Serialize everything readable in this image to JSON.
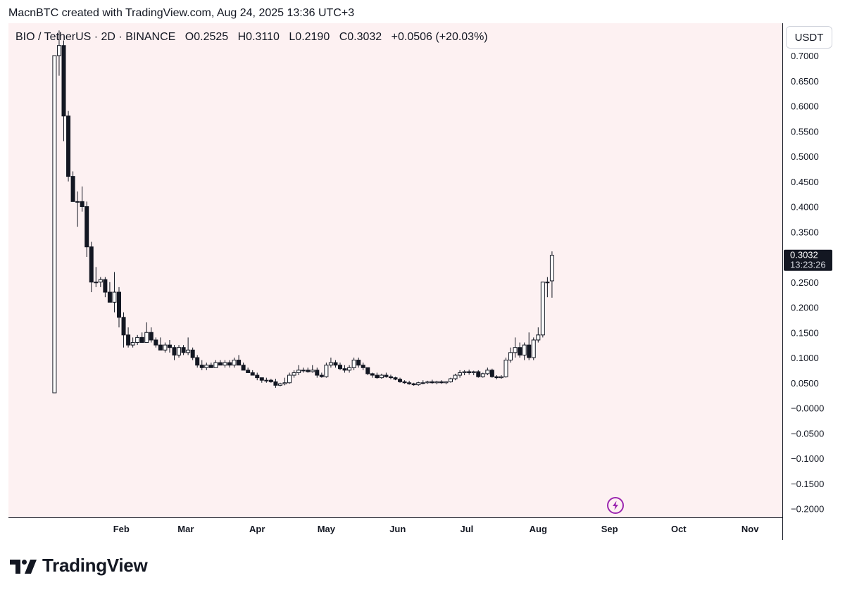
{
  "attribution": "MacnBTC created with TradingView.com, Aug 24, 2025 13:36 UTC+3",
  "legend": {
    "symbol": "BIO / TetherUS · 2D · BINANCE",
    "open": "O0.2525",
    "high": "H0.3110",
    "low": "L0.2190",
    "close": "C0.3032",
    "change": "+0.0506 (+20.03%)"
  },
  "currency_button": "USDT",
  "last_price": {
    "value": "0.3032",
    "countdown": "13:23:26"
  },
  "brand": "TradingView",
  "colors": {
    "chart_background": "#fdf1f2",
    "candle_up_fill": "#ffffff",
    "candle_down_fill": "#131722",
    "candle_outline": "#131722",
    "price_label_bg": "#131722",
    "flash_icon": "#9c27b0",
    "axis_line": "#131722"
  },
  "chart_data": {
    "type": "candlestick",
    "title": "BIO / TetherUS · 2D · BINANCE",
    "y_axis_unit": "USDT",
    "ylim": [
      -0.22,
      0.72
    ],
    "y_ticks": [
      "0.7000",
      "0.6500",
      "0.6000",
      "0.5500",
      "0.5000",
      "0.4500",
      "0.4000",
      "0.3500",
      "0.3000",
      "0.2500",
      "0.2000",
      "0.1500",
      "0.1000",
      "0.0500",
      "−0.0000",
      "−0.0500",
      "−0.1000",
      "−0.1500",
      "−0.2000"
    ],
    "y_tick_values": [
      0.7,
      0.65,
      0.6,
      0.55,
      0.5,
      0.45,
      0.4,
      0.35,
      0.3,
      0.25,
      0.2,
      0.15,
      0.1,
      0.05,
      0.0,
      -0.05,
      -0.1,
      -0.15,
      -0.2
    ],
    "x_tick_labels": [
      "Feb",
      "Mar",
      "Apr",
      "May",
      "Jun",
      "Jul",
      "Aug",
      "Sep",
      "Oct",
      "Nov"
    ],
    "x_tick_dates": [
      "2025-02-01",
      "2025-03-01",
      "2025-04-01",
      "2025-05-01",
      "2025-06-01",
      "2025-07-01",
      "2025-08-01",
      "2025-09-01",
      "2025-10-01",
      "2025-11-01"
    ],
    "x_range": [
      "2024-12-14",
      "2025-11-15"
    ],
    "grid": false,
    "candles": [
      {
        "d": "2025-01-03",
        "o": 0.03,
        "h": 0.7,
        "l": 0.03,
        "c": 0.7
      },
      {
        "d": "2025-01-05",
        "o": 0.7,
        "h": 0.75,
        "l": 0.66,
        "c": 0.72
      },
      {
        "d": "2025-01-07",
        "o": 0.72,
        "h": 0.73,
        "l": 0.53,
        "c": 0.58
      },
      {
        "d": "2025-01-09",
        "o": 0.58,
        "h": 0.59,
        "l": 0.45,
        "c": 0.46
      },
      {
        "d": "2025-01-11",
        "o": 0.46,
        "h": 0.47,
        "l": 0.41,
        "c": 0.41
      },
      {
        "d": "2025-01-13",
        "o": 0.41,
        "h": 0.43,
        "l": 0.36,
        "c": 0.41
      },
      {
        "d": "2025-01-15",
        "o": 0.41,
        "h": 0.44,
        "l": 0.39,
        "c": 0.4
      },
      {
        "d": "2025-01-17",
        "o": 0.4,
        "h": 0.41,
        "l": 0.3,
        "c": 0.32
      },
      {
        "d": "2025-01-19",
        "o": 0.32,
        "h": 0.33,
        "l": 0.23,
        "c": 0.25
      },
      {
        "d": "2025-01-21",
        "o": 0.25,
        "h": 0.28,
        "l": 0.24,
        "c": 0.25
      },
      {
        "d": "2025-01-23",
        "o": 0.25,
        "h": 0.26,
        "l": 0.24,
        "c": 0.255
      },
      {
        "d": "2025-01-25",
        "o": 0.255,
        "h": 0.26,
        "l": 0.22,
        "c": 0.23
      },
      {
        "d": "2025-01-27",
        "o": 0.23,
        "h": 0.25,
        "l": 0.21,
        "c": 0.21
      },
      {
        "d": "2025-01-29",
        "o": 0.21,
        "h": 0.27,
        "l": 0.19,
        "c": 0.23
      },
      {
        "d": "2025-01-31",
        "o": 0.23,
        "h": 0.24,
        "l": 0.16,
        "c": 0.18
      },
      {
        "d": "2025-02-02",
        "o": 0.18,
        "h": 0.19,
        "l": 0.12,
        "c": 0.145
      },
      {
        "d": "2025-02-04",
        "o": 0.145,
        "h": 0.16,
        "l": 0.12,
        "c": 0.125
      },
      {
        "d": "2025-02-06",
        "o": 0.125,
        "h": 0.14,
        "l": 0.12,
        "c": 0.13
      },
      {
        "d": "2025-02-08",
        "o": 0.13,
        "h": 0.145,
        "l": 0.125,
        "c": 0.14
      },
      {
        "d": "2025-02-10",
        "o": 0.14,
        "h": 0.15,
        "l": 0.13,
        "c": 0.13
      },
      {
        "d": "2025-02-12",
        "o": 0.13,
        "h": 0.17,
        "l": 0.13,
        "c": 0.15
      },
      {
        "d": "2025-02-14",
        "o": 0.15,
        "h": 0.16,
        "l": 0.13,
        "c": 0.135
      },
      {
        "d": "2025-02-16",
        "o": 0.135,
        "h": 0.14,
        "l": 0.12,
        "c": 0.125
      },
      {
        "d": "2025-02-18",
        "o": 0.125,
        "h": 0.14,
        "l": 0.115,
        "c": 0.115
      },
      {
        "d": "2025-02-20",
        "o": 0.115,
        "h": 0.13,
        "l": 0.11,
        "c": 0.125
      },
      {
        "d": "2025-02-22",
        "o": 0.125,
        "h": 0.135,
        "l": 0.11,
        "c": 0.12
      },
      {
        "d": "2025-02-24",
        "o": 0.12,
        "h": 0.125,
        "l": 0.095,
        "c": 0.105
      },
      {
        "d": "2025-02-26",
        "o": 0.105,
        "h": 0.125,
        "l": 0.1,
        "c": 0.12
      },
      {
        "d": "2025-02-28",
        "o": 0.12,
        "h": 0.125,
        "l": 0.105,
        "c": 0.11
      },
      {
        "d": "2025-03-02",
        "o": 0.11,
        "h": 0.14,
        "l": 0.105,
        "c": 0.115
      },
      {
        "d": "2025-03-04",
        "o": 0.115,
        "h": 0.12,
        "l": 0.095,
        "c": 0.1
      },
      {
        "d": "2025-03-06",
        "o": 0.1,
        "h": 0.105,
        "l": 0.08,
        "c": 0.085
      },
      {
        "d": "2025-03-08",
        "o": 0.085,
        "h": 0.095,
        "l": 0.075,
        "c": 0.08
      },
      {
        "d": "2025-03-10",
        "o": 0.08,
        "h": 0.09,
        "l": 0.075,
        "c": 0.085
      },
      {
        "d": "2025-03-12",
        "o": 0.085,
        "h": 0.09,
        "l": 0.08,
        "c": 0.08
      },
      {
        "d": "2025-03-14",
        "o": 0.08,
        "h": 0.095,
        "l": 0.08,
        "c": 0.09
      },
      {
        "d": "2025-03-16",
        "o": 0.09,
        "h": 0.095,
        "l": 0.085,
        "c": 0.085
      },
      {
        "d": "2025-03-18",
        "o": 0.085,
        "h": 0.095,
        "l": 0.08,
        "c": 0.09
      },
      {
        "d": "2025-03-20",
        "o": 0.09,
        "h": 0.095,
        "l": 0.08,
        "c": 0.085
      },
      {
        "d": "2025-03-22",
        "o": 0.085,
        "h": 0.1,
        "l": 0.08,
        "c": 0.095
      },
      {
        "d": "2025-03-24",
        "o": 0.095,
        "h": 0.105,
        "l": 0.085,
        "c": 0.085
      },
      {
        "d": "2025-03-26",
        "o": 0.085,
        "h": 0.09,
        "l": 0.075,
        "c": 0.075
      },
      {
        "d": "2025-03-28",
        "o": 0.075,
        "h": 0.08,
        "l": 0.07,
        "c": 0.07
      },
      {
        "d": "2025-03-30",
        "o": 0.07,
        "h": 0.075,
        "l": 0.065,
        "c": 0.065
      },
      {
        "d": "2025-04-01",
        "o": 0.065,
        "h": 0.07,
        "l": 0.055,
        "c": 0.06
      },
      {
        "d": "2025-04-03",
        "o": 0.06,
        "h": 0.06,
        "l": 0.05,
        "c": 0.055
      },
      {
        "d": "2025-04-05",
        "o": 0.055,
        "h": 0.06,
        "l": 0.05,
        "c": 0.055
      },
      {
        "d": "2025-04-07",
        "o": 0.055,
        "h": 0.058,
        "l": 0.05,
        "c": 0.052
      },
      {
        "d": "2025-04-09",
        "o": 0.052,
        "h": 0.058,
        "l": 0.04,
        "c": 0.045
      },
      {
        "d": "2025-04-11",
        "o": 0.045,
        "h": 0.05,
        "l": 0.043,
        "c": 0.048
      },
      {
        "d": "2025-04-13",
        "o": 0.048,
        "h": 0.06,
        "l": 0.045,
        "c": 0.05
      },
      {
        "d": "2025-04-15",
        "o": 0.05,
        "h": 0.07,
        "l": 0.048,
        "c": 0.065
      },
      {
        "d": "2025-04-17",
        "o": 0.065,
        "h": 0.075,
        "l": 0.06,
        "c": 0.07
      },
      {
        "d": "2025-04-19",
        "o": 0.07,
        "h": 0.085,
        "l": 0.065,
        "c": 0.075
      },
      {
        "d": "2025-04-21",
        "o": 0.075,
        "h": 0.08,
        "l": 0.07,
        "c": 0.075
      },
      {
        "d": "2025-04-23",
        "o": 0.075,
        "h": 0.08,
        "l": 0.07,
        "c": 0.072
      },
      {
        "d": "2025-04-25",
        "o": 0.072,
        "h": 0.085,
        "l": 0.07,
        "c": 0.075
      },
      {
        "d": "2025-04-27",
        "o": 0.075,
        "h": 0.08,
        "l": 0.06,
        "c": 0.065
      },
      {
        "d": "2025-04-29",
        "o": 0.065,
        "h": 0.07,
        "l": 0.06,
        "c": 0.062
      },
      {
        "d": "2025-05-01",
        "o": 0.062,
        "h": 0.09,
        "l": 0.06,
        "c": 0.085
      },
      {
        "d": "2025-05-03",
        "o": 0.085,
        "h": 0.1,
        "l": 0.08,
        "c": 0.09
      },
      {
        "d": "2025-05-05",
        "o": 0.09,
        "h": 0.095,
        "l": 0.08,
        "c": 0.085
      },
      {
        "d": "2025-05-07",
        "o": 0.085,
        "h": 0.09,
        "l": 0.075,
        "c": 0.078
      },
      {
        "d": "2025-05-09",
        "o": 0.078,
        "h": 0.085,
        "l": 0.07,
        "c": 0.075
      },
      {
        "d": "2025-05-11",
        "o": 0.075,
        "h": 0.085,
        "l": 0.07,
        "c": 0.08
      },
      {
        "d": "2025-05-13",
        "o": 0.08,
        "h": 0.1,
        "l": 0.075,
        "c": 0.095
      },
      {
        "d": "2025-05-15",
        "o": 0.095,
        "h": 0.1,
        "l": 0.08,
        "c": 0.085
      },
      {
        "d": "2025-05-17",
        "o": 0.085,
        "h": 0.09,
        "l": 0.075,
        "c": 0.08
      },
      {
        "d": "2025-05-19",
        "o": 0.08,
        "h": 0.08,
        "l": 0.065,
        "c": 0.068
      },
      {
        "d": "2025-05-21",
        "o": 0.068,
        "h": 0.07,
        "l": 0.06,
        "c": 0.065
      },
      {
        "d": "2025-05-23",
        "o": 0.065,
        "h": 0.07,
        "l": 0.058,
        "c": 0.06
      },
      {
        "d": "2025-05-25",
        "o": 0.06,
        "h": 0.068,
        "l": 0.058,
        "c": 0.065
      },
      {
        "d": "2025-05-27",
        "o": 0.065,
        "h": 0.07,
        "l": 0.06,
        "c": 0.062
      },
      {
        "d": "2025-05-29",
        "o": 0.062,
        "h": 0.066,
        "l": 0.057,
        "c": 0.06
      },
      {
        "d": "2025-05-31",
        "o": 0.06,
        "h": 0.062,
        "l": 0.055,
        "c": 0.057
      },
      {
        "d": "2025-06-02",
        "o": 0.057,
        "h": 0.06,
        "l": 0.05,
        "c": 0.052
      },
      {
        "d": "2025-06-04",
        "o": 0.052,
        "h": 0.055,
        "l": 0.048,
        "c": 0.05
      },
      {
        "d": "2025-06-06",
        "o": 0.05,
        "h": 0.054,
        "l": 0.046,
        "c": 0.048
      },
      {
        "d": "2025-06-08",
        "o": 0.048,
        "h": 0.05,
        "l": 0.044,
        "c": 0.046
      },
      {
        "d": "2025-06-10",
        "o": 0.046,
        "h": 0.052,
        "l": 0.044,
        "c": 0.05
      },
      {
        "d": "2025-06-12",
        "o": 0.05,
        "h": 0.055,
        "l": 0.047,
        "c": 0.05
      },
      {
        "d": "2025-06-14",
        "o": 0.05,
        "h": 0.054,
        "l": 0.048,
        "c": 0.052
      },
      {
        "d": "2025-06-16",
        "o": 0.052,
        "h": 0.056,
        "l": 0.048,
        "c": 0.05
      },
      {
        "d": "2025-06-18",
        "o": 0.05,
        "h": 0.054,
        "l": 0.047,
        "c": 0.052
      },
      {
        "d": "2025-06-20",
        "o": 0.052,
        "h": 0.055,
        "l": 0.048,
        "c": 0.05
      },
      {
        "d": "2025-06-22",
        "o": 0.05,
        "h": 0.053,
        "l": 0.047,
        "c": 0.052
      },
      {
        "d": "2025-06-24",
        "o": 0.052,
        "h": 0.06,
        "l": 0.05,
        "c": 0.058
      },
      {
        "d": "2025-06-26",
        "o": 0.058,
        "h": 0.068,
        "l": 0.055,
        "c": 0.065
      },
      {
        "d": "2025-06-28",
        "o": 0.065,
        "h": 0.075,
        "l": 0.06,
        "c": 0.07
      },
      {
        "d": "2025-06-30",
        "o": 0.07,
        "h": 0.075,
        "l": 0.065,
        "c": 0.072
      },
      {
        "d": "2025-07-02",
        "o": 0.072,
        "h": 0.076,
        "l": 0.066,
        "c": 0.07
      },
      {
        "d": "2025-07-04",
        "o": 0.07,
        "h": 0.074,
        "l": 0.065,
        "c": 0.072
      },
      {
        "d": "2025-07-06",
        "o": 0.072,
        "h": 0.075,
        "l": 0.06,
        "c": 0.062
      },
      {
        "d": "2025-07-08",
        "o": 0.062,
        "h": 0.07,
        "l": 0.06,
        "c": 0.068
      },
      {
        "d": "2025-07-10",
        "o": 0.068,
        "h": 0.08,
        "l": 0.065,
        "c": 0.075
      },
      {
        "d": "2025-07-12",
        "o": 0.075,
        "h": 0.078,
        "l": 0.06,
        "c": 0.062
      },
      {
        "d": "2025-07-14",
        "o": 0.062,
        "h": 0.065,
        "l": 0.057,
        "c": 0.06
      },
      {
        "d": "2025-07-16",
        "o": 0.06,
        "h": 0.065,
        "l": 0.058,
        "c": 0.062
      },
      {
        "d": "2025-07-18",
        "o": 0.062,
        "h": 0.1,
        "l": 0.06,
        "c": 0.095
      },
      {
        "d": "2025-07-20",
        "o": 0.095,
        "h": 0.12,
        "l": 0.09,
        "c": 0.11
      },
      {
        "d": "2025-07-22",
        "o": 0.11,
        "h": 0.14,
        "l": 0.1,
        "c": 0.12
      },
      {
        "d": "2025-07-24",
        "o": 0.12,
        "h": 0.13,
        "l": 0.1,
        "c": 0.105
      },
      {
        "d": "2025-07-26",
        "o": 0.105,
        "h": 0.13,
        "l": 0.095,
        "c": 0.125
      },
      {
        "d": "2025-07-28",
        "o": 0.125,
        "h": 0.15,
        "l": 0.095,
        "c": 0.1
      },
      {
        "d": "2025-07-30",
        "o": 0.1,
        "h": 0.14,
        "l": 0.095,
        "c": 0.135
      },
      {
        "d": "2025-08-01",
        "o": 0.135,
        "h": 0.16,
        "l": 0.13,
        "c": 0.145
      },
      {
        "d": "2025-08-03",
        "o": 0.145,
        "h": 0.25,
        "l": 0.14,
        "c": 0.25
      },
      {
        "d": "2025-08-05",
        "o": 0.25,
        "h": 0.26,
        "l": 0.22,
        "c": 0.25
      },
      {
        "d": "2025-08-07",
        "o": 0.2525,
        "h": 0.311,
        "l": 0.219,
        "c": 0.3032
      }
    ]
  }
}
